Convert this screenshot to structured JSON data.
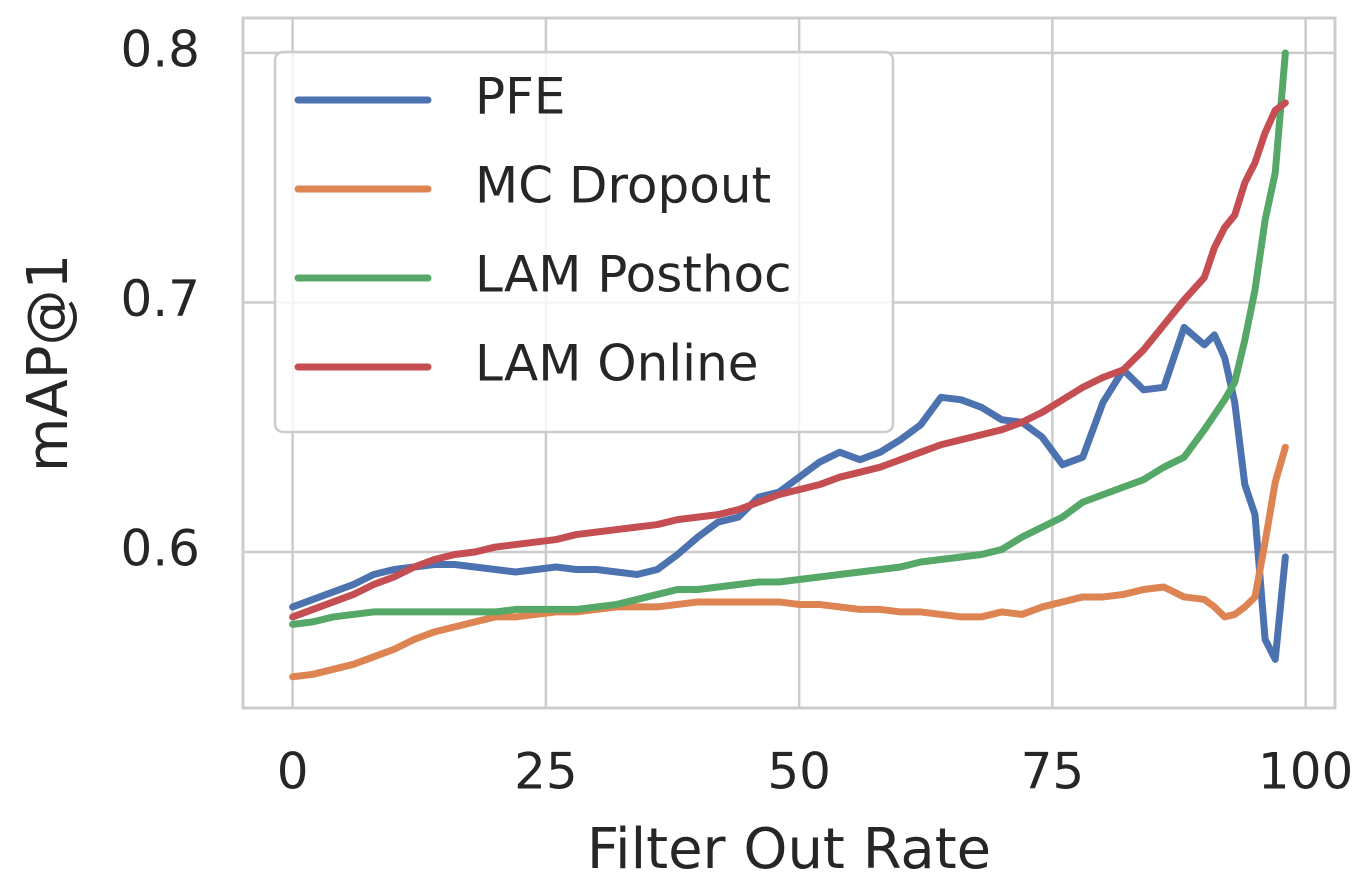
{
  "chart_data": {
    "type": "line",
    "xlabel": "Filter Out Rate",
    "ylabel": "mAP@1",
    "x": [
      0,
      2,
      4,
      6,
      8,
      10,
      12,
      14,
      16,
      18,
      20,
      22,
      24,
      26,
      28,
      30,
      32,
      34,
      36,
      38,
      40,
      42,
      44,
      46,
      48,
      50,
      52,
      54,
      56,
      58,
      60,
      62,
      64,
      66,
      68,
      70,
      72,
      74,
      76,
      78,
      80,
      82,
      84,
      86,
      88,
      90,
      91,
      92,
      93,
      94,
      95,
      96,
      97,
      98
    ],
    "series": [
      {
        "name": "PFE",
        "color": "#4c72b0",
        "values": [
          0.578,
          0.581,
          0.584,
          0.587,
          0.591,
          0.593,
          0.594,
          0.595,
          0.595,
          0.594,
          0.593,
          0.592,
          0.593,
          0.594,
          0.593,
          0.593,
          0.592,
          0.591,
          0.593,
          0.599,
          0.606,
          0.612,
          0.614,
          0.622,
          0.624,
          0.63,
          0.636,
          0.64,
          0.637,
          0.64,
          0.645,
          0.651,
          0.662,
          0.661,
          0.658,
          0.653,
          0.652,
          0.646,
          0.635,
          0.638,
          0.66,
          0.673,
          0.665,
          0.666,
          0.69,
          0.683,
          0.687,
          0.678,
          0.66,
          0.627,
          0.615,
          0.565,
          0.557,
          0.598
        ]
      },
      {
        "name": "MC Dropout",
        "color": "#dd8452",
        "values": [
          0.55,
          0.551,
          0.553,
          0.555,
          0.558,
          0.561,
          0.565,
          0.568,
          0.57,
          0.572,
          0.574,
          0.574,
          0.575,
          0.576,
          0.576,
          0.577,
          0.578,
          0.578,
          0.578,
          0.579,
          0.58,
          0.58,
          0.58,
          0.58,
          0.58,
          0.579,
          0.579,
          0.578,
          0.577,
          0.577,
          0.576,
          0.576,
          0.575,
          0.574,
          0.574,
          0.576,
          0.575,
          0.578,
          0.58,
          0.582,
          0.582,
          0.583,
          0.585,
          0.586,
          0.582,
          0.581,
          0.578,
          0.574,
          0.575,
          0.578,
          0.582,
          0.604,
          0.628,
          0.642
        ]
      },
      {
        "name": "LAM Posthoc",
        "color": "#55a868",
        "values": [
          0.571,
          0.572,
          0.574,
          0.575,
          0.576,
          0.576,
          0.576,
          0.576,
          0.576,
          0.576,
          0.576,
          0.577,
          0.577,
          0.577,
          0.577,
          0.578,
          0.579,
          0.581,
          0.583,
          0.585,
          0.585,
          0.586,
          0.587,
          0.588,
          0.588,
          0.589,
          0.59,
          0.591,
          0.592,
          0.593,
          0.594,
          0.596,
          0.597,
          0.598,
          0.599,
          0.601,
          0.606,
          0.61,
          0.614,
          0.62,
          0.623,
          0.626,
          0.629,
          0.634,
          0.638,
          0.649,
          0.655,
          0.661,
          0.668,
          0.685,
          0.705,
          0.733,
          0.752,
          0.8
        ]
      },
      {
        "name": "LAM Online",
        "color": "#c44e52",
        "values": [
          0.574,
          0.577,
          0.58,
          0.583,
          0.587,
          0.59,
          0.594,
          0.597,
          0.599,
          0.6,
          0.602,
          0.603,
          0.604,
          0.605,
          0.607,
          0.608,
          0.609,
          0.61,
          0.611,
          0.613,
          0.614,
          0.615,
          0.617,
          0.62,
          0.623,
          0.625,
          0.627,
          0.63,
          0.632,
          0.634,
          0.637,
          0.64,
          0.643,
          0.645,
          0.647,
          0.649,
          0.652,
          0.656,
          0.661,
          0.666,
          0.67,
          0.673,
          0.681,
          0.691,
          0.701,
          0.71,
          0.722,
          0.73,
          0.735,
          0.748,
          0.756,
          0.768,
          0.777,
          0.78
        ]
      }
    ],
    "xlim": [
      -4.9,
      102.9
    ],
    "xticks": [
      0,
      25,
      50,
      75,
      100
    ],
    "ylim": [
      0.5375,
      0.814
    ],
    "yticks": [
      0.6,
      0.7,
      0.8
    ],
    "grid": true,
    "legend": "upper left"
  }
}
